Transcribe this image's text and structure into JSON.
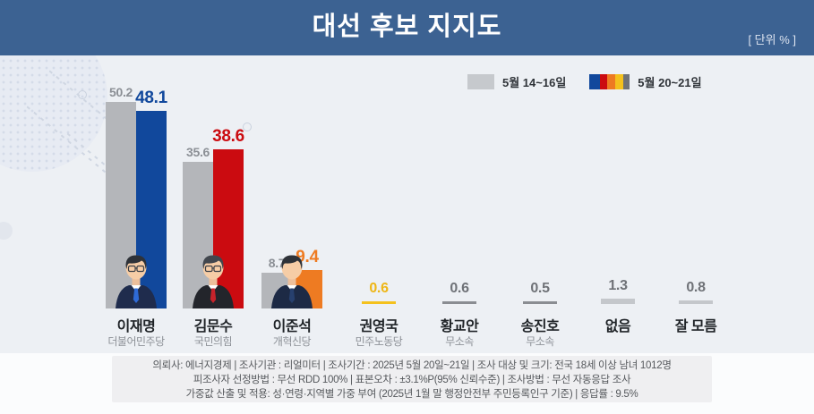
{
  "header": {
    "title": "대선 후보 지지도",
    "unit_label": "[ 단위 % ]"
  },
  "legend": {
    "prev_label": "5월 14~16일",
    "curr_label": "5월 20~21일",
    "prev_color": "#c6c9cd",
    "curr_colors": [
      "#11489c",
      "#cb0b10",
      "#ee7b22",
      "#f4c11d",
      "#6f7277"
    ]
  },
  "chart_data": {
    "type": "bar",
    "title": "대선 후보 지지도",
    "unit": "%",
    "categories": [
      "이재명",
      "김문수",
      "이준석",
      "권영국",
      "황교안",
      "송진호",
      "없음",
      "잘 모름"
    ],
    "series": [
      {
        "name": "5월 14~16일",
        "values": [
          50.2,
          35.6,
          8.7,
          null,
          null,
          null,
          null,
          null
        ]
      },
      {
        "name": "5월 20~21일",
        "values": [
          48.1,
          38.6,
          9.4,
          0.6,
          0.6,
          0.5,
          1.3,
          0.8
        ]
      }
    ],
    "legend_position": "top-right",
    "grid": false,
    "value_labels": true,
    "ylim": [
      0,
      55
    ]
  },
  "candidates": [
    {
      "name": "이재명",
      "party": "더불어민주당",
      "prev": 50.2,
      "curr": 48.1,
      "type": "big",
      "color": "#11489c",
      "avatar": {
        "suit": "#1f2c4d",
        "tie": "#2e6bd8",
        "hair": "#2e3238",
        "glasses": true
      }
    },
    {
      "name": "김문수",
      "party": "국민의힘",
      "prev": 35.6,
      "curr": 38.6,
      "type": "big",
      "color": "#cb0b10",
      "avatar": {
        "suit": "#23252b",
        "tie": "#c6232b",
        "hair": "#42474e",
        "glasses": true
      }
    },
    {
      "name": "이준석",
      "party": "개혁신당",
      "prev": 8.7,
      "curr": 9.4,
      "type": "big",
      "color": "#ee7b22",
      "avatar": {
        "suit": "#1d2a45",
        "tie": "#27406e",
        "hair": "#2e3238",
        "glasses": false
      }
    },
    {
      "name": "권영국",
      "party": "민주노동당",
      "curr": 0.6,
      "type": "small",
      "color": "#f4c11d",
      "value_color": "#eeb616"
    },
    {
      "name": "황교안",
      "party": "무소속",
      "curr": 0.6,
      "type": "small",
      "color": "#8a8d92",
      "value_color": "#6f7277"
    },
    {
      "name": "송진호",
      "party": "무소속",
      "curr": 0.5,
      "type": "small",
      "color": "#8a8d92",
      "value_color": "#6f7277"
    },
    {
      "name": "없음",
      "party": "",
      "curr": 1.3,
      "type": "small",
      "color": "#c4c7cb",
      "value_color": "#6f7277"
    },
    {
      "name": "잘 모름",
      "party": "",
      "curr": 0.8,
      "type": "small",
      "color": "#c4c7cb",
      "value_color": "#6f7277"
    }
  ],
  "palette": {
    "header_bg": "#3c6292",
    "chart_bg": "#edf0f4",
    "prev_bar": "#b4b6ba",
    "prev_value": "#8b8f95",
    "name_color": "#1f2327",
    "party_color": "#8d9197",
    "footer_bg": "#efeff1",
    "footer_text": "#55585c"
  },
  "footer": {
    "line1": "의뢰사: 에너지경제 | 조사기관 : 리얼미터  |  조사기간 : 2025년 5월 20일~21일 | 조사 대상 및 크기: 전국 18세 이상 남녀 1012명",
    "line2": "피조사자 선정방법 : 무선 RDD 100% | 표본오차 : ±3.1%P(95% 신뢰수준) | 조사방법 : 무선 자동응답 조사",
    "line3": "가중값 산출 및 적용: 성·연령·지역별 가중 부여 (2025년 1월 말 행정안전부 주민등록인구 기준) | 응답률 : 9.5%"
  }
}
